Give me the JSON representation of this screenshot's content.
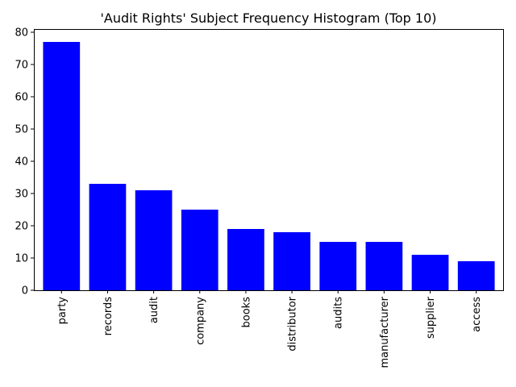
{
  "chart_data": {
    "type": "bar",
    "title": "'Audit Rights' Subject Frequency Histogram (Top 10)",
    "xlabel": "",
    "ylabel": "",
    "categories": [
      "party",
      "records",
      "audit",
      "company",
      "books",
      "distributor",
      "audits",
      "manufacturer",
      "supplier",
      "access"
    ],
    "values": [
      77,
      33,
      31,
      25,
      19,
      18,
      15,
      15,
      11,
      9
    ],
    "ylim": [
      0,
      81
    ],
    "yticks": [
      0,
      10,
      20,
      30,
      40,
      50,
      60,
      70,
      80
    ],
    "bar_color": "#0000ff",
    "grid": false,
    "legend": false
  }
}
